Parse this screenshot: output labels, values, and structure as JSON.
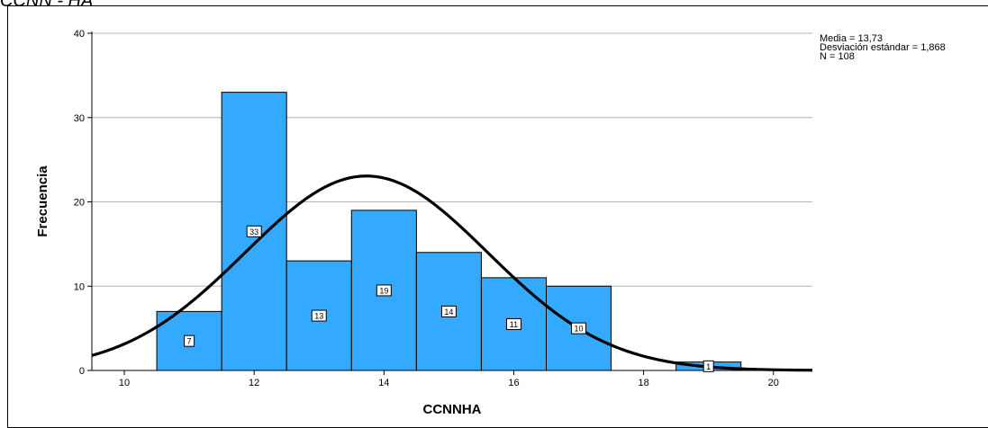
{
  "header": {
    "caption": "CCNN - HA"
  },
  "stats": {
    "mean_label": "Media = 13,73",
    "std_label": "Desviación estándar = 1,868",
    "n_label": "N = 108"
  },
  "chart_data": {
    "type": "bar",
    "title": "",
    "xlabel": "CCNNHA",
    "ylabel": "Frecuencia",
    "xlim": [
      9.5,
      20.6
    ],
    "ylim": [
      0,
      40
    ],
    "x_ticks": [
      10,
      12,
      14,
      16,
      18,
      20
    ],
    "y_ticks": [
      0,
      10,
      20,
      30,
      40
    ],
    "grid": true,
    "bin_width": 1,
    "bars": [
      {
        "x": 11,
        "value": 7,
        "label": "7"
      },
      {
        "x": 12,
        "value": 33,
        "label": "33"
      },
      {
        "x": 13,
        "value": 13,
        "label": "13"
      },
      {
        "x": 14,
        "value": 19,
        "label": "19"
      },
      {
        "x": 15,
        "value": 14,
        "label": "14"
      },
      {
        "x": 16,
        "value": 11,
        "label": "11"
      },
      {
        "x": 17,
        "value": 10,
        "label": "10"
      },
      {
        "x": 19,
        "value": 1,
        "label": "1"
      }
    ],
    "normal_curve": {
      "mean": 13.73,
      "std": 1.868,
      "n": 108
    },
    "colors": {
      "bar_fill": "#33aaff",
      "bar_stroke": "#000000",
      "curve": "#000000",
      "grid": "#b4b4b4"
    }
  }
}
